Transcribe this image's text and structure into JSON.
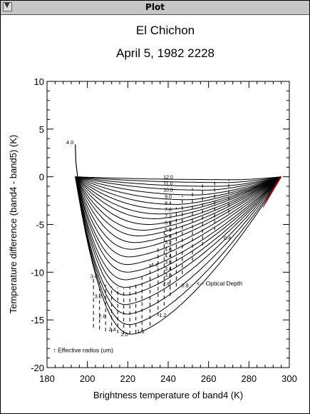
{
  "window": {
    "title": "Plot",
    "menu_glyph": "▼"
  },
  "chart_data": {
    "type": "line",
    "title": "El Chichon",
    "subtitle": "April 5, 1982 2228",
    "xlabel": "Brightness temperature of band4 (K)",
    "ylabel": "Temperature difference (band4 - band5) (K)",
    "xlim": [
      180,
      300
    ],
    "ylim": [
      -20,
      10
    ],
    "xticks": [
      "180",
      "200",
      "220",
      "240",
      "260",
      "280",
      "300"
    ],
    "yticks": [
      "-20",
      "-15",
      "-10",
      "-5",
      "0",
      "5",
      "10"
    ],
    "x_minor_step": 4,
    "y_minor_step": 1,
    "grid": false,
    "clear_sky_x": 296,
    "curve_start_x": 194,
    "optical_depth_curves": [
      {
        "min": 0.3,
        "xmin": 275
      },
      {
        "min": 0.6,
        "xmin": 270
      },
      {
        "min": 1.0,
        "xmin": 265
      },
      {
        "min": 1.4,
        "xmin": 260
      },
      {
        "min": 1.9,
        "xmin": 255
      },
      {
        "min": 2.4,
        "xmin": 250
      },
      {
        "min": 2.9,
        "xmin": 245
      },
      {
        "min": 3.4,
        "xmin": 241
      },
      {
        "min": 3.9,
        "xmin": 237
      },
      {
        "min": 4.4,
        "xmin": 234
      },
      {
        "min": 5.0,
        "xmin": 231
      },
      {
        "min": 5.6,
        "xmin": 228
      },
      {
        "min": 6.2,
        "xmin": 226
      },
      {
        "min": 6.9,
        "xmin": 224
      },
      {
        "min": 7.6,
        "xmin": 222
      },
      {
        "min": 8.4,
        "xmin": 221
      },
      {
        "min": 9.2,
        "xmin": 220
      },
      {
        "min": 10.0,
        "xmin": 220
      },
      {
        "min": 10.8,
        "xmin": 219
      },
      {
        "min": 11.6,
        "xmin": 219
      },
      {
        "min": 12.4,
        "xmin": 219
      },
      {
        "min": 13.4,
        "xmin": 219
      },
      {
        "min": 14.4,
        "xmin": 220
      },
      {
        "min": 15.5,
        "xmin": 221
      },
      {
        "min": 16.5,
        "xmin": 222
      }
    ],
    "radius_dashes": [
      {
        "x": 203,
        "y1": -15.8,
        "y2": -10.5
      },
      {
        "x": 206,
        "y1": -16.0,
        "y2": -11.0
      },
      {
        "x": 209,
        "y1": -16.2,
        "y2": -11.3
      },
      {
        "x": 212,
        "y1": -16.3,
        "y2": -11.5
      },
      {
        "x": 215,
        "y1": -16.4,
        "y2": -11.6
      },
      {
        "x": 218,
        "y1": -16.5,
        "y2": -11.7
      },
      {
        "x": 221,
        "y1": -16.5,
        "y2": -11.5
      },
      {
        "x": 224,
        "y1": -16.4,
        "y2": -11.0
      },
      {
        "x": 227,
        "y1": -16.2,
        "y2": -10.2
      },
      {
        "x": 231,
        "y1": -15.6,
        "y2": -8.8
      },
      {
        "x": 235,
        "y1": -14.6,
        "y2": -7.2
      },
      {
        "x": 238,
        "y1": -13.5,
        "y2": -5.6
      },
      {
        "x": 241,
        "y1": -12.5,
        "y2": -4.5
      },
      {
        "x": 244,
        "y1": -11.5,
        "y2": -3.2
      },
      {
        "x": 247,
        "y1": -10.2,
        "y2": -2.0
      },
      {
        "x": 252,
        "y1": -8.8,
        "y2": -1.2
      },
      {
        "x": 257,
        "y1": -7.2,
        "y2": -0.8
      },
      {
        "x": 263,
        "y1": -5.6,
        "y2": -0.5
      },
      {
        "x": 270,
        "y1": -3.8,
        "y2": -0.3
      }
    ],
    "reff_labels": [
      {
        "text": "4.0",
        "x": 189.5,
        "y": 3.4
      },
      {
        "text": "3.6",
        "x": 201.5,
        "y": -10.6
      },
      {
        "text": "3.2",
        "x": 203.5,
        "y": -12.7
      },
      {
        "text": "2.8",
        "x": 205.5,
        "y": -14.8
      },
      {
        "text": "2.4",
        "x": 210.5,
        "y": -16.2
      },
      {
        "text": "2.0",
        "x": 216.5,
        "y": -16.7
      },
      {
        "text": "1.6",
        "x": 224.5,
        "y": -16.4
      },
      {
        "text": "1.2",
        "x": 235.5,
        "y": -14.7
      },
      {
        "text": "0.8",
        "x": 246.5,
        "y": -11.6
      },
      {
        "text": "0.4",
        "x": 267.5,
        "y": -6.6
      }
    ],
    "stacked_labels": [
      "12.0",
      "11.0",
      "10.0",
      "9.0",
      "8.4",
      "7.8",
      "7.2",
      "6.6",
      "6.0",
      "5.6",
      "5.2",
      "4.8",
      "4.4",
      "3.8",
      "3.4",
      "3.0"
    ],
    "stacked_labels_x": 240,
    "stacked_labels_y_top": -0.2,
    "stacked_labels_y_bottom": -10.5,
    "extra_labels": [
      {
        "text": "4.4",
        "x": 231.5,
        "y": -9.4
      },
      {
        "text": "2.6",
        "x": 237.5,
        "y": -11.4
      }
    ],
    "annotations": [
      {
        "text": "<-- Optical Depth",
        "x": 254,
        "y": -11.4
      },
      {
        "text": "↑ Effective radius (um)",
        "x": 183,
        "y": -18.4
      }
    ],
    "colors": {
      "curves": "#000000",
      "clear_sky": "#b00000"
    }
  }
}
